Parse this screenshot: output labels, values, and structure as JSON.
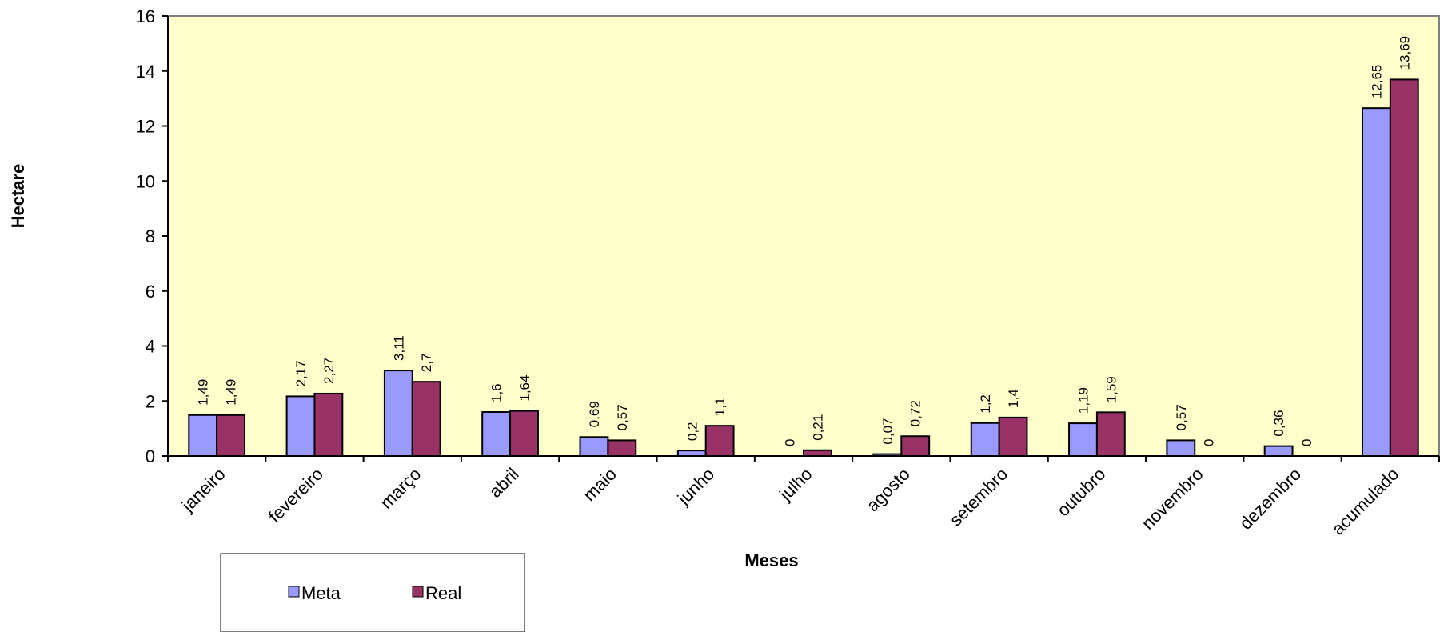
{
  "chart_data": {
    "type": "bar",
    "categories": [
      "janeiro",
      "fevereiro",
      "março",
      "abril",
      "maio",
      "junho",
      "julho",
      "agosto",
      "setembro",
      "outubro",
      "novembro",
      "dezembro",
      "acumulado"
    ],
    "series": [
      {
        "name": "Meta",
        "color": "#9999ff",
        "values": [
          1.49,
          2.17,
          3.11,
          1.6,
          0.69,
          0.2,
          0,
          0.07,
          1.2,
          1.19,
          0.57,
          0.36,
          12.65
        ],
        "labels": [
          "1,49",
          "2,17",
          "3,11",
          "1,6",
          "0,69",
          "0,2",
          "0",
          "0,07",
          "1,2",
          "1,19",
          "0,57",
          "0,36",
          "12,65"
        ]
      },
      {
        "name": "Real",
        "color": "#993366",
        "values": [
          1.49,
          2.27,
          2.7,
          1.64,
          0.57,
          1.1,
          0.21,
          0.72,
          1.4,
          1.59,
          0,
          0,
          13.69
        ],
        "labels": [
          "1,49",
          "2,27",
          "2,7",
          "1,64",
          "0,57",
          "1,1",
          "0,21",
          "0,72",
          "1,4",
          "1,59",
          "0",
          "0",
          "13,69"
        ]
      }
    ],
    "title": "",
    "xlabel": "Meses",
    "ylabel": "Hectare",
    "ylim": [
      0,
      16
    ],
    "yticks": [
      0,
      2,
      4,
      6,
      8,
      10,
      12,
      14,
      16
    ],
    "plot_background": "#ffffcc",
    "grid": false,
    "legend_position": "bottom-left"
  }
}
